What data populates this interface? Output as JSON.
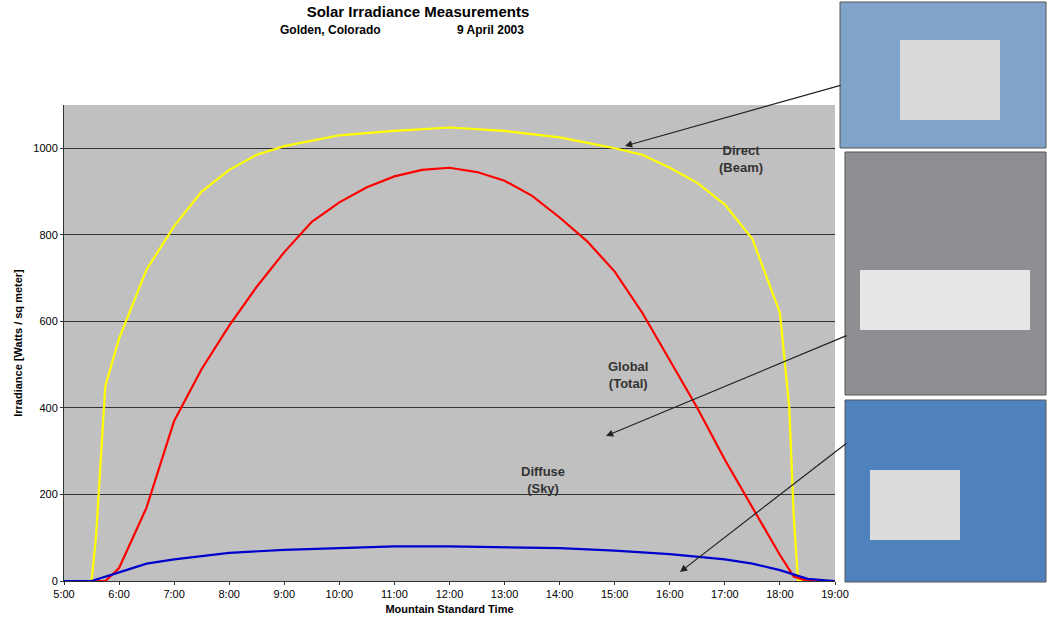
{
  "chart_data": {
    "type": "line",
    "title": "Solar Irradiance Measurements",
    "subtitle": [
      "Golden, Colorado",
      "9 April 2003"
    ],
    "x_label": "Mountain Standard Time",
    "y_label": "Irradiance [Watts / sq meter]",
    "xlim": [
      5,
      19
    ],
    "xticks": [
      {
        "value": 5,
        "label": "5:00"
      },
      {
        "value": 6,
        "label": "6:00"
      },
      {
        "value": 7,
        "label": "7:00"
      },
      {
        "value": 8,
        "label": "8:00"
      },
      {
        "value": 9,
        "label": "9:00"
      },
      {
        "value": 10,
        "label": "10:00"
      },
      {
        "value": 11,
        "label": "11:00"
      },
      {
        "value": 12,
        "label": "12:00"
      },
      {
        "value": 13,
        "label": "13:00"
      },
      {
        "value": 14,
        "label": "14:00"
      },
      {
        "value": 15,
        "label": "15:00"
      },
      {
        "value": 16,
        "label": "16:00"
      },
      {
        "value": 17,
        "label": "17:00"
      },
      {
        "value": 18,
        "label": "18:00"
      },
      {
        "value": 19,
        "label": "19:00"
      }
    ],
    "ylim": [
      0,
      1100
    ],
    "yticks": [
      0,
      200,
      400,
      600,
      800,
      1000
    ],
    "grid": "y",
    "series": [
      {
        "name": "Direct (Beam)",
        "color": "#ffff00",
        "x": [
          5,
          5.5,
          5.58,
          5.67,
          5.75,
          6,
          6.5,
          7,
          7.5,
          8,
          8.5,
          9,
          10,
          11,
          12,
          13,
          14,
          15,
          15.5,
          16,
          16.5,
          17,
          17.5,
          18,
          18.17,
          18.25,
          18.33,
          19
        ],
        "values": [
          0,
          0,
          100,
          300,
          450,
          560,
          720,
          820,
          900,
          950,
          985,
          1005,
          1030,
          1040,
          1048,
          1040,
          1025,
          1000,
          985,
          955,
          920,
          870,
          790,
          620,
          400,
          150,
          0,
          0
        ]
      },
      {
        "name": "Global (Total)",
        "color": "#ff0000",
        "x": [
          5,
          5.75,
          6,
          6.5,
          7,
          7.5,
          8,
          8.5,
          9,
          9.5,
          10,
          10.5,
          11,
          11.5,
          12,
          12.5,
          13,
          13.5,
          14,
          14.5,
          15,
          15.5,
          16,
          16.5,
          17,
          17.5,
          18,
          18.25,
          18.5,
          19
        ],
        "values": [
          0,
          0,
          30,
          170,
          370,
          490,
          590,
          680,
          760,
          830,
          875,
          910,
          935,
          950,
          955,
          945,
          925,
          890,
          840,
          785,
          715,
          620,
          510,
          400,
          280,
          170,
          60,
          10,
          0,
          0
        ]
      },
      {
        "name": "Diffuse (Sky)",
        "color": "#0000cc",
        "x": [
          5,
          5.5,
          6,
          6.5,
          7,
          8,
          9,
          10,
          11,
          12,
          13,
          14,
          15,
          16,
          17,
          17.5,
          18,
          18.5,
          19
        ],
        "values": [
          0,
          0,
          20,
          40,
          50,
          65,
          72,
          76,
          80,
          80,
          78,
          76,
          70,
          62,
          50,
          40,
          25,
          5,
          0
        ]
      }
    ]
  }
}
